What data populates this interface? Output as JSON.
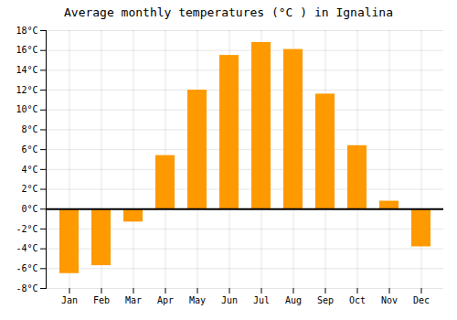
{
  "chart_data": {
    "type": "bar",
    "title": "Average monthly temperatures (°C ) in Ignalina",
    "categories": [
      "Jan",
      "Feb",
      "Mar",
      "Apr",
      "May",
      "Jun",
      "Jul",
      "Aug",
      "Sep",
      "Oct",
      "Nov",
      "Dec"
    ],
    "values": [
      -6.5,
      -5.7,
      -1.3,
      5.4,
      12.0,
      15.5,
      16.8,
      16.1,
      11.6,
      6.4,
      0.8,
      -3.8
    ],
    "color": "#FF9900",
    "ylim": [
      -8,
      18
    ],
    "yticks": [
      {
        "value": -8,
        "label": "-8°C"
      },
      {
        "value": -6,
        "label": "-6°C"
      },
      {
        "value": -4,
        "label": "-4°C"
      },
      {
        "value": -2,
        "label": "-2°C"
      },
      {
        "value": 0,
        "label": "0°C"
      },
      {
        "value": 2,
        "label": "2°C"
      },
      {
        "value": 4,
        "label": "4°C"
      },
      {
        "value": 6,
        "label": "6°C"
      },
      {
        "value": 8,
        "label": "8°C"
      },
      {
        "value": 10,
        "label": "10°C"
      },
      {
        "value": 12,
        "label": "12°C"
      },
      {
        "value": 14,
        "label": "14°C"
      },
      {
        "value": 16,
        "label": "16°C"
      },
      {
        "value": 18,
        "label": "18°C"
      }
    ],
    "grid": true
  }
}
